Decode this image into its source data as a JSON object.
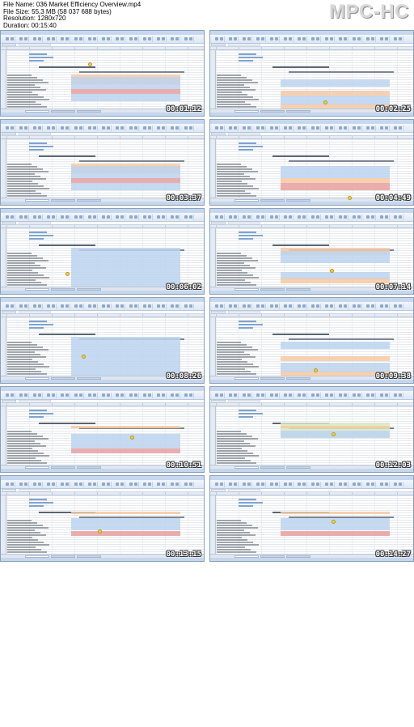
{
  "header": {
    "file_name": "File Name: 036 Market Efficiency Overview.mp4",
    "file_size": "File Size: 55,3 MB (58 037 688 bytes)",
    "resolution": "Resolution: 1280x720",
    "duration": "Duration: 00:15:40",
    "logo": "MPC-HC"
  },
  "thumbnails": [
    {
      "timestamp": "00:01:12"
    },
    {
      "timestamp": "00:02:25"
    },
    {
      "timestamp": "00:03:37"
    },
    {
      "timestamp": "00:04:49"
    },
    {
      "timestamp": "00:06:02"
    },
    {
      "timestamp": "00:07:14"
    },
    {
      "timestamp": "00:08:26"
    },
    {
      "timestamp": "00:09:38"
    },
    {
      "timestamp": "00:10:51"
    },
    {
      "timestamp": "00:12:03"
    },
    {
      "timestamp": "00:13:15"
    },
    {
      "timestamp": "00:14:27"
    }
  ],
  "colors": {
    "band_blue": "#bcd3ee",
    "band_orange": "#f6c9a2",
    "band_red": "#e7a0a0",
    "band_green": "#d7e7c3",
    "logo_blue": "#7fa4cf"
  }
}
